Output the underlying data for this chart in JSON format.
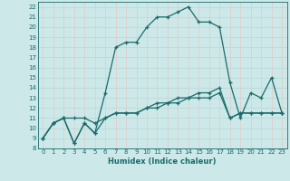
{
  "title": "",
  "xlabel": "Humidex (Indice chaleur)",
  "bg_color": "#cce8e8",
  "line_color": "#1a6b6b",
  "grid_color_v": "#e8c8c8",
  "grid_color_h": "#b8d8d8",
  "xlim": [
    -0.5,
    23.5
  ],
  "ylim": [
    8,
    22.5
  ],
  "xticks": [
    0,
    1,
    2,
    3,
    4,
    5,
    6,
    7,
    8,
    9,
    10,
    11,
    12,
    13,
    14,
    15,
    16,
    17,
    18,
    19,
    20,
    21,
    22,
    23
  ],
  "yticks": [
    8,
    9,
    10,
    11,
    12,
    13,
    14,
    15,
    16,
    17,
    18,
    19,
    20,
    21,
    22
  ],
  "line1_x": [
    0,
    1,
    2,
    3,
    4,
    5,
    6,
    7,
    8,
    9,
    10,
    11,
    12,
    13,
    14,
    15,
    16,
    17,
    18,
    19,
    20,
    21,
    22,
    23
  ],
  "line1_y": [
    9.0,
    10.5,
    11.0,
    8.5,
    10.5,
    9.5,
    13.5,
    18.0,
    18.5,
    18.5,
    20.0,
    21.0,
    21.0,
    21.5,
    22.0,
    20.5,
    20.5,
    20.0,
    14.5,
    11.0,
    13.5,
    13.0,
    15.0,
    11.5
  ],
  "line2_x": [
    0,
    1,
    2,
    3,
    4,
    5,
    6,
    7,
    8,
    9,
    10,
    11,
    12,
    13,
    14,
    15,
    16,
    17,
    18,
    19,
    20,
    21,
    22,
    23
  ],
  "line2_y": [
    9.0,
    10.5,
    11.0,
    11.0,
    11.0,
    10.5,
    11.0,
    11.5,
    11.5,
    11.5,
    12.0,
    12.0,
    12.5,
    12.5,
    13.0,
    13.0,
    13.0,
    13.5,
    11.0,
    11.5,
    11.5,
    11.5,
    11.5,
    11.5
  ],
  "line3_x": [
    0,
    1,
    2,
    3,
    4,
    5,
    6,
    7,
    8,
    9,
    10,
    11,
    12,
    13,
    14,
    15,
    16,
    17,
    18,
    19,
    20,
    21,
    22,
    23
  ],
  "line3_y": [
    9.0,
    10.5,
    11.0,
    8.5,
    10.5,
    9.5,
    11.0,
    11.5,
    11.5,
    11.5,
    12.0,
    12.5,
    12.5,
    13.0,
    13.0,
    13.5,
    13.5,
    14.0,
    11.0,
    11.5,
    11.5,
    11.5,
    11.5,
    11.5
  ]
}
